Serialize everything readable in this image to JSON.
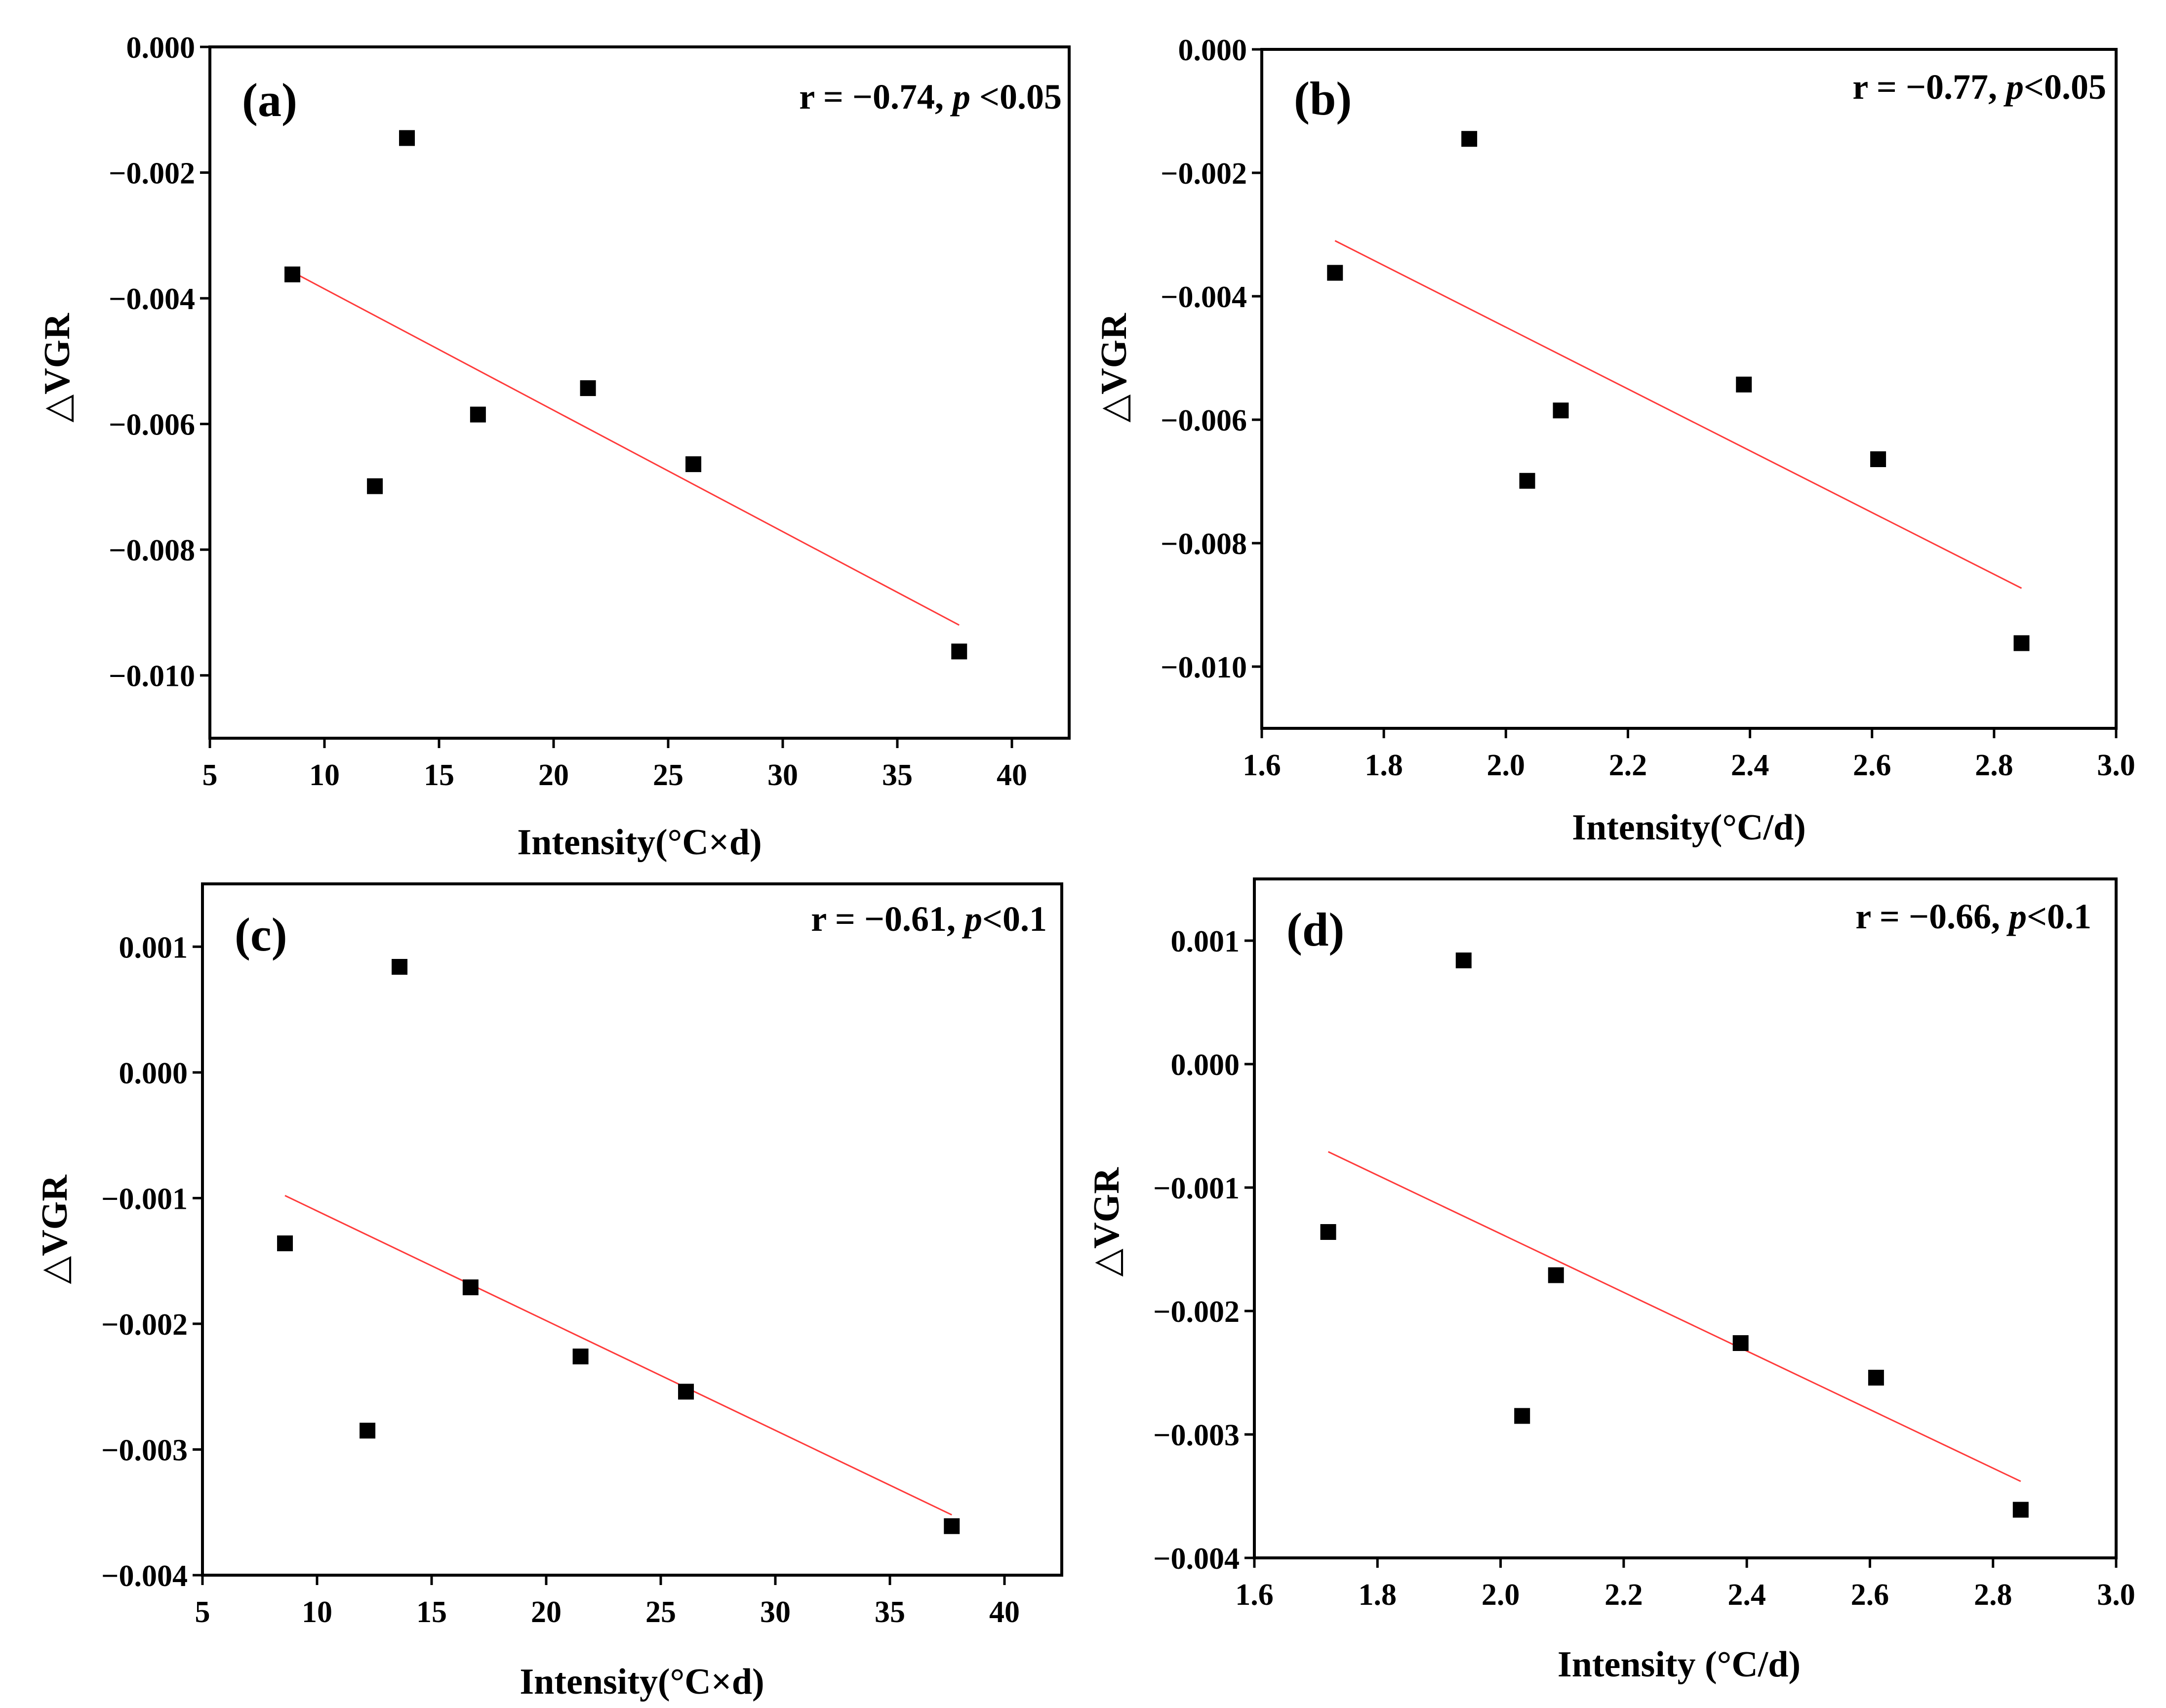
{
  "chart_data": [
    {
      "panel": "(a)",
      "type": "scatter",
      "xlabel": "Intensity(°C×d)",
      "ylabel": "△VGR",
      "stat": {
        "r_text": "r = −0.74, ",
        "p_symbol": "p",
        "p_text": " <0.05"
      },
      "xlim": [
        5,
        42.5
      ],
      "ylim": [
        -0.011,
        0.0
      ],
      "xticks": [
        5,
        10,
        15,
        20,
        25,
        30,
        35,
        40
      ],
      "xtick_labels": [
        "5",
        "10",
        "15",
        "20",
        "25",
        "30",
        "35",
        "40"
      ],
      "yticks": [
        0.0,
        -0.002,
        -0.004,
        -0.006,
        -0.008,
        -0.01
      ],
      "ytick_labels": [
        "0.000",
        "−0.002",
        "−0.004",
        "−0.006",
        "−0.008",
        "−0.010"
      ],
      "points": [
        {
          "x": 8.6,
          "y": -0.00362
        },
        {
          "x": 12.2,
          "y": -0.00699
        },
        {
          "x": 13.6,
          "y": -0.00145
        },
        {
          "x": 16.7,
          "y": -0.00585
        },
        {
          "x": 21.5,
          "y": -0.00543
        },
        {
          "x": 26.1,
          "y": -0.00664
        },
        {
          "x": 37.7,
          "y": -0.00962
        }
      ],
      "fit_line": {
        "x": [
          8.6,
          37.7
        ],
        "y": [
          -0.00358,
          -0.0092
        ]
      }
    },
    {
      "panel": "(b)",
      "type": "scatter",
      "xlabel": "Intensity(°C/d)",
      "ylabel": "△VGR",
      "stat": {
        "r_text": "r = −0.77, ",
        "p_symbol": "p",
        "p_text": "<0.05"
      },
      "xlim": [
        1.6,
        3.0
      ],
      "ylim": [
        -0.011,
        0.0
      ],
      "xticks": [
        1.6,
        1.8,
        2.0,
        2.2,
        2.4,
        2.6,
        2.8,
        3.0
      ],
      "xtick_labels": [
        "1.6",
        "1.8",
        "2.0",
        "2.2",
        "2.4",
        "2.6",
        "2.8",
        "3.0"
      ],
      "yticks": [
        0.0,
        -0.002,
        -0.004,
        -0.006,
        -0.008,
        -0.01
      ],
      "ytick_labels": [
        "0.000",
        "−0.002",
        "−0.004",
        "−0.006",
        "−0.008",
        "−0.010"
      ],
      "points": [
        {
          "x": 1.72,
          "y": -0.00362
        },
        {
          "x": 1.94,
          "y": -0.00145
        },
        {
          "x": 2.035,
          "y": -0.00699
        },
        {
          "x": 2.09,
          "y": -0.00585
        },
        {
          "x": 2.39,
          "y": -0.00543
        },
        {
          "x": 2.61,
          "y": -0.00664
        },
        {
          "x": 2.845,
          "y": -0.00962
        }
      ],
      "fit_line": {
        "x": [
          1.72,
          2.845
        ],
        "y": [
          -0.0031,
          -0.00873
        ]
      }
    },
    {
      "panel": "(c)",
      "type": "scatter",
      "xlabel": "Intensity(°C×d)",
      "ylabel": "△VGR",
      "stat": {
        "r_text": "r = −0.61, ",
        "p_symbol": "p",
        "p_text": "<0.1"
      },
      "xlim": [
        5,
        42.5
      ],
      "ylim": [
        -0.004,
        0.0015
      ],
      "xticks": [
        5,
        10,
        15,
        20,
        25,
        30,
        35,
        40
      ],
      "xtick_labels": [
        "5",
        "10",
        "15",
        "20",
        "25",
        "30",
        "35",
        "40"
      ],
      "yticks": [
        0.001,
        0.0,
        -0.001,
        -0.002,
        -0.003,
        -0.004
      ],
      "ytick_labels": [
        "0.001",
        "0.000",
        "−0.001",
        "−0.002",
        "−0.003",
        "−0.004"
      ],
      "points": [
        {
          "x": 8.6,
          "y": -0.00136
        },
        {
          "x": 12.2,
          "y": -0.00285
        },
        {
          "x": 13.6,
          "y": 0.00084
        },
        {
          "x": 16.7,
          "y": -0.00171
        },
        {
          "x": 21.5,
          "y": -0.00226
        },
        {
          "x": 26.1,
          "y": -0.00254
        },
        {
          "x": 37.7,
          "y": -0.00361
        }
      ],
      "fit_line": {
        "x": [
          8.6,
          37.7
        ],
        "y": [
          -0.00098,
          -0.00352
        ]
      }
    },
    {
      "panel": "(d)",
      "type": "scatter",
      "xlabel": "Intensity (°C/d)",
      "ylabel": "△VGR",
      "stat": {
        "r_text": "r = −0.66, ",
        "p_symbol": "p",
        "p_text": "<0.1"
      },
      "xlim": [
        1.6,
        3.0
      ],
      "ylim": [
        -0.004,
        0.0015
      ],
      "xticks": [
        1.6,
        1.8,
        2.0,
        2.2,
        2.4,
        2.6,
        2.8,
        3.0
      ],
      "xtick_labels": [
        "1.6",
        "1.8",
        "2.0",
        "2.2",
        "2.4",
        "2.6",
        "2.8",
        "3.0"
      ],
      "yticks": [
        0.001,
        0.0,
        -0.001,
        -0.002,
        -0.003,
        -0.004
      ],
      "ytick_labels": [
        "0.001",
        "0.000",
        "−0.001",
        "−0.002",
        "−0.003",
        "−0.004"
      ],
      "points": [
        {
          "x": 1.72,
          "y": -0.00136
        },
        {
          "x": 1.94,
          "y": 0.00084
        },
        {
          "x": 2.035,
          "y": -0.00285
        },
        {
          "x": 2.09,
          "y": -0.00171
        },
        {
          "x": 2.39,
          "y": -0.00226
        },
        {
          "x": 2.61,
          "y": -0.00254
        },
        {
          "x": 2.845,
          "y": -0.00361
        }
      ],
      "fit_line": {
        "x": [
          1.72,
          2.845
        ],
        "y": [
          -0.00071,
          -0.00338
        ]
      }
    }
  ],
  "colors": {
    "points": "#000000",
    "fit_line": "#ff3b3b",
    "axes": "#000000"
  }
}
